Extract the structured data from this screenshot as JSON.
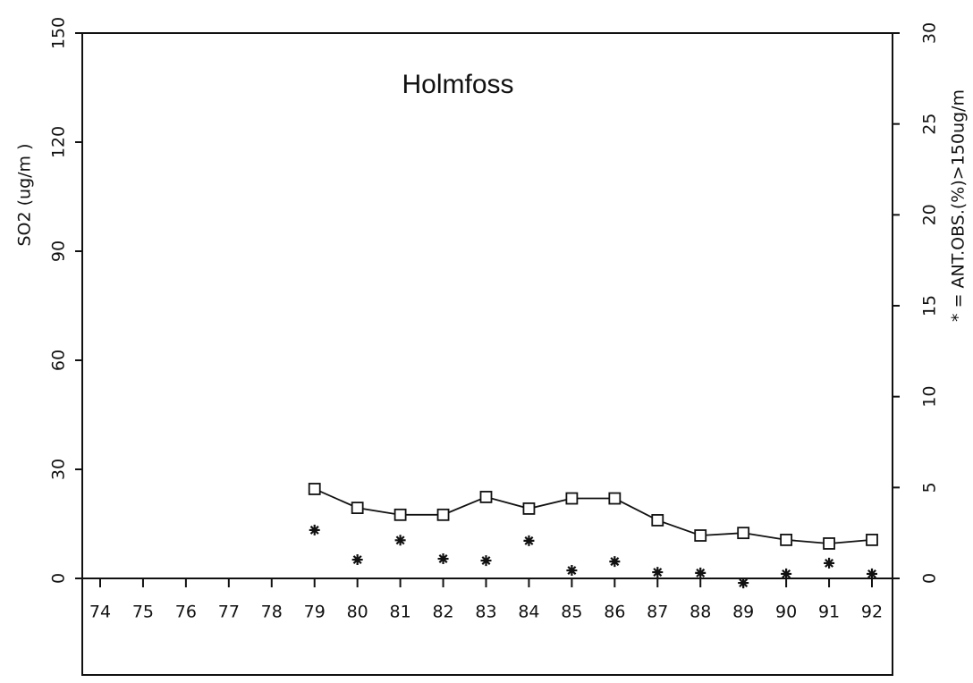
{
  "chart_data": {
    "type": "line",
    "title": "Holmfoss",
    "y_label": "SO2 (ug/m )",
    "y2_label": "* = ANT.OBS.(%)>150ug/m",
    "categories": [
      "74",
      "75",
      "76",
      "77",
      "78",
      "79",
      "80",
      "81",
      "82",
      "83",
      "84",
      "85",
      "86",
      "87",
      "88",
      "89",
      "90",
      "91",
      "92"
    ],
    "series": [
      {
        "name": "SO2",
        "color": "#111111",
        "marker": "square",
        "values": [
          null,
          null,
          null,
          null,
          null,
          24.6,
          19.4,
          17.5,
          17.5,
          22.4,
          19.2,
          22,
          22,
          16,
          11.8,
          12.5,
          10.6,
          9.6,
          10.6
        ]
      },
      {
        "name": "ANT.OBS.(%)>150ug/m",
        "color": "#111111",
        "marker": "star",
        "axis": "y2",
        "values": [
          null,
          null,
          null,
          null,
          null,
          2.66,
          1.03,
          2.1,
          1.08,
          0.98,
          2.07,
          0.44,
          0.93,
          0.34,
          0.3,
          -0.25,
          0.25,
          0.84,
          0.25
        ]
      }
    ],
    "ylim": [
      0,
      150
    ],
    "yticks": [
      0,
      30,
      60,
      90,
      120,
      150
    ],
    "y2lim": [
      0,
      30
    ],
    "y2ticks": [
      0,
      5,
      10,
      15,
      20,
      25,
      30
    ]
  }
}
